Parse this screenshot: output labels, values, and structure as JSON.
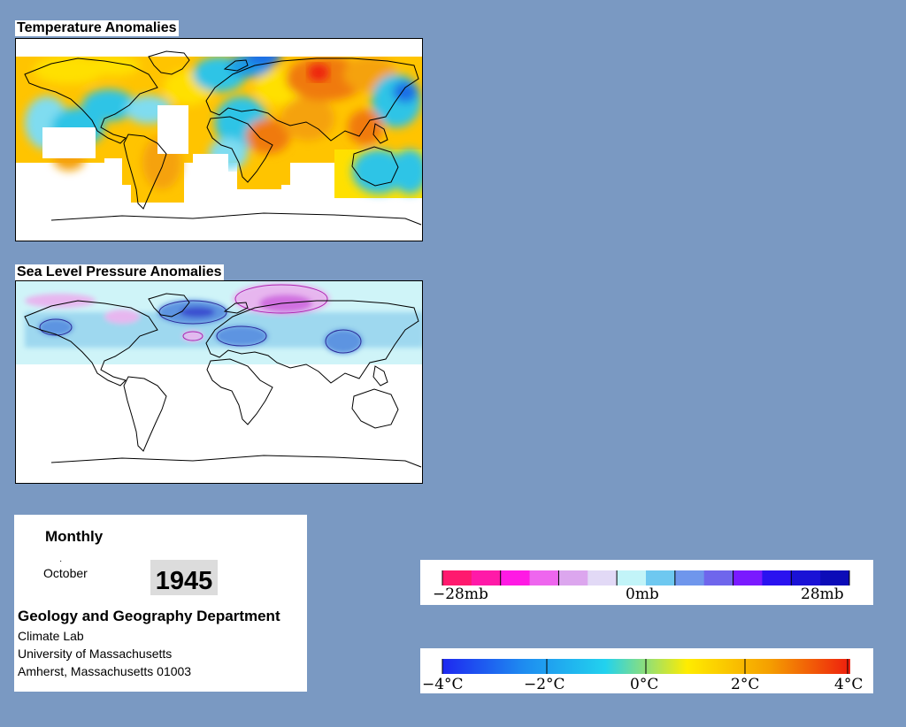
{
  "panels": {
    "temperature": {
      "title": "Temperature Anomalies",
      "colors": [
        "#1e6ee6",
        "#1e9be6",
        "#2ec4e6",
        "#7fdcf0",
        "#ffe000",
        "#ffc400",
        "#f5a20a",
        "#f07a10",
        "#ee2010"
      ]
    },
    "pressure": {
      "title": "Sea Level Pressure Anomalies",
      "colors": [
        "#cff4f8",
        "#9ed8ef",
        "#5d94e1",
        "#3a4fd0",
        "#e7b6ef",
        "#d070e0"
      ]
    }
  },
  "info": {
    "frequency": "Monthly",
    "month": "October",
    "year": "1945",
    "department": "Geology and Geography Department",
    "lines": [
      "Climate Lab",
      "University of Massachusetts",
      "Amherst, Massachusetts 01003"
    ]
  },
  "legends": {
    "pressure": {
      "labels": [
        "−28mb",
        "0mb",
        "28mb"
      ],
      "colors": [
        "#ff1a6e",
        "#ff1aa8",
        "#ff1ae4",
        "#ee66ee",
        "#dca6ee",
        "#e2d9f6",
        "#c2f4f8",
        "#6ec8f0",
        "#6f96ec",
        "#6f66ec",
        "#7a1aff",
        "#2a12f0",
        "#1a12d6",
        "#0c0cb8"
      ]
    },
    "temperature": {
      "labels": [
        "−4°C",
        "−2°C",
        "0°C",
        "2°C",
        "4°C"
      ],
      "stops": [
        "#1e28f0",
        "#1e8cf0",
        "#22d2ee",
        "#ffec00",
        "#f5a000",
        "#ee1e0e"
      ]
    }
  }
}
